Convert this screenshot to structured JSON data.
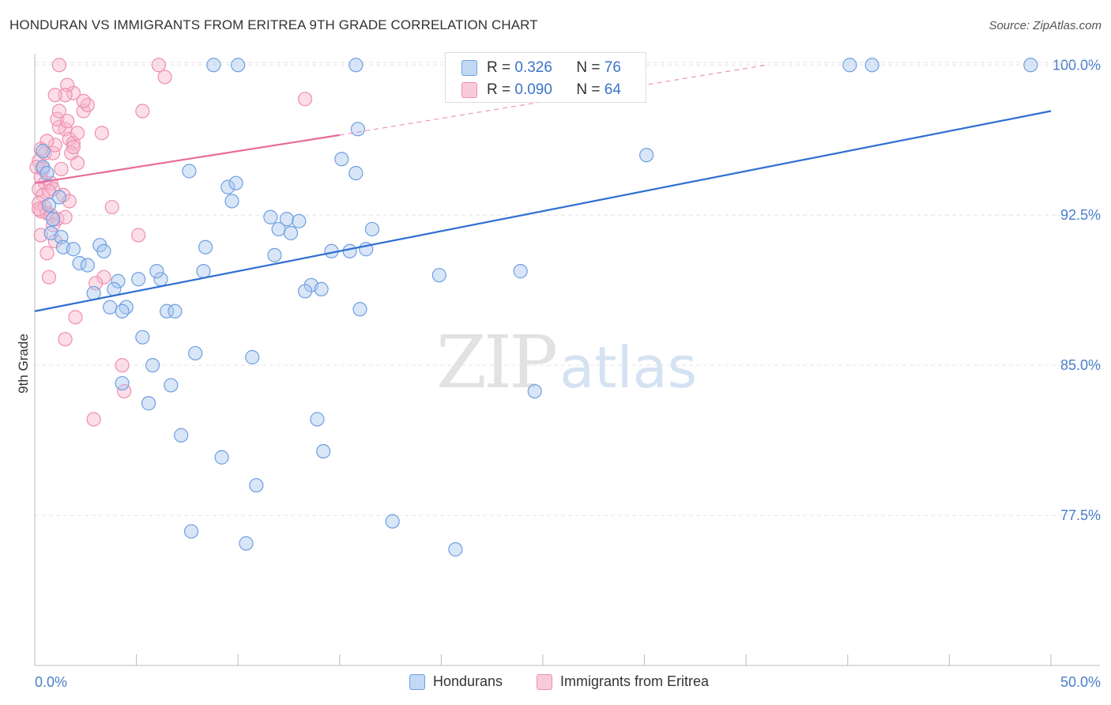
{
  "header": {
    "title": "HONDURAN VS IMMIGRANTS FROM ERITREA 9TH GRADE CORRELATION CHART",
    "source": "Source: ZipAtlas.com"
  },
  "watermark": {
    "zip": "ZIP",
    "atlas": "atlas"
  },
  "stats": {
    "rows": [
      {
        "r_label": "R =",
        "r_value": "0.326",
        "n_label": "N =",
        "n_value": "76"
      },
      {
        "r_label": "R =",
        "r_value": "0.090",
        "n_label": "N =",
        "n_value": "64"
      }
    ]
  },
  "legend": {
    "items": [
      {
        "label": "Hondurans"
      },
      {
        "label": "Immigrants from Eritrea"
      }
    ]
  },
  "colors": {
    "blue_fill": "#a9c7ef",
    "blue_stroke": "#6f9fe0",
    "blue_line": "#2f6fd0",
    "pink_fill": "#f7b6cb",
    "pink_stroke": "#ee8fae",
    "pink_line": "#e8699a",
    "axis_text": "#4a7ec9",
    "grid": "#e3e3e3"
  },
  "chart_data": {
    "type": "scatter",
    "title": "HONDURAN VS IMMIGRANTS FROM ERITREA 9TH GRADE CORRELATION CHART",
    "xlabel": "",
    "ylabel": "9th Grade",
    "xlim": [
      0,
      50
    ],
    "ylim": [
      70.0,
      100.8
    ],
    "x_tick_labels": [
      "0.0%",
      "50.0%"
    ],
    "y_ticks": [
      77.5,
      85.0,
      92.5,
      100.0
    ],
    "y_tick_labels": [
      "77.5%",
      "85.0%",
      "92.5%",
      "100.0%"
    ],
    "grid": true,
    "legend_position": "bottom-center",
    "series": [
      {
        "name": "Hondurans",
        "r": 0.326,
        "n": 76,
        "trend": {
          "x": [
            0,
            50
          ],
          "y": [
            87.7,
            97.7
          ]
        },
        "points": [
          [
            0.4,
            95.7
          ],
          [
            0.4,
            94.9
          ],
          [
            0.7,
            93.0
          ],
          [
            0.9,
            92.3
          ],
          [
            0.8,
            91.6
          ],
          [
            1.3,
            91.4
          ],
          [
            1.4,
            90.9
          ],
          [
            1.9,
            90.8
          ],
          [
            3.2,
            91.0
          ],
          [
            3.4,
            90.7
          ],
          [
            2.2,
            90.1
          ],
          [
            2.6,
            90.0
          ],
          [
            4.1,
            89.2
          ],
          [
            5.1,
            89.3
          ],
          [
            6.2,
            89.3
          ],
          [
            6.0,
            89.7
          ],
          [
            8.3,
            89.7
          ],
          [
            2.9,
            88.6
          ],
          [
            3.9,
            88.8
          ],
          [
            3.7,
            87.9
          ],
          [
            4.5,
            87.9
          ],
          [
            4.3,
            87.7
          ],
          [
            6.5,
            87.7
          ],
          [
            6.9,
            87.7
          ],
          [
            5.3,
            86.4
          ],
          [
            7.9,
            85.6
          ],
          [
            10.7,
            85.4
          ],
          [
            5.8,
            85.0
          ],
          [
            4.3,
            84.1
          ],
          [
            6.7,
            84.0
          ],
          [
            5.6,
            83.1
          ],
          [
            7.2,
            81.5
          ],
          [
            9.2,
            80.4
          ],
          [
            13.9,
            82.3
          ],
          [
            14.2,
            80.7
          ],
          [
            10.9,
            79.0
          ],
          [
            17.6,
            77.2
          ],
          [
            7.7,
            76.7
          ],
          [
            10.4,
            76.1
          ],
          [
            20.7,
            75.8
          ],
          [
            7.6,
            94.7
          ],
          [
            9.5,
            93.9
          ],
          [
            9.9,
            94.1
          ],
          [
            9.7,
            93.2
          ],
          [
            8.4,
            90.9
          ],
          [
            11.6,
            92.4
          ],
          [
            12.4,
            92.3
          ],
          [
            13.0,
            92.2
          ],
          [
            12.0,
            91.8
          ],
          [
            12.6,
            91.6
          ],
          [
            11.8,
            90.5
          ],
          [
            13.6,
            89.0
          ],
          [
            14.1,
            88.8
          ],
          [
            13.3,
            88.7
          ],
          [
            16.6,
            91.8
          ],
          [
            16.3,
            90.8
          ],
          [
            15.5,
            90.7
          ],
          [
            14.6,
            90.7
          ],
          [
            16.0,
            87.8
          ],
          [
            15.1,
            95.3
          ],
          [
            15.8,
            94.6
          ],
          [
            15.9,
            96.8
          ],
          [
            19.9,
            89.5
          ],
          [
            23.9,
            89.7
          ],
          [
            24.6,
            83.7
          ],
          [
            30.1,
            95.5
          ],
          [
            8.8,
            100.0
          ],
          [
            10.0,
            100.0
          ],
          [
            15.8,
            100.0
          ],
          [
            25.0,
            100.0
          ],
          [
            28.4,
            100.0
          ],
          [
            40.1,
            100.0
          ],
          [
            41.2,
            100.0
          ],
          [
            49.0,
            100.0
          ],
          [
            1.2,
            93.4
          ],
          [
            0.6,
            94.6
          ]
        ]
      },
      {
        "name": "Immigrants from Eritrea",
        "r": 0.09,
        "n": 64,
        "trend": {
          "x": [
            0,
            15
          ],
          "y": [
            94.1,
            96.5
          ]
        },
        "trend_extension": {
          "x": [
            15,
            36
          ],
          "y": [
            96.5,
            100.0
          ]
        },
        "points": [
          [
            0.2,
            95.2
          ],
          [
            0.1,
            94.9
          ],
          [
            0.3,
            94.4
          ],
          [
            0.5,
            94.1
          ],
          [
            0.2,
            93.8
          ],
          [
            0.4,
            93.5
          ],
          [
            0.2,
            93.1
          ],
          [
            0.5,
            92.9
          ],
          [
            0.3,
            92.7
          ],
          [
            0.6,
            92.6
          ],
          [
            0.8,
            92.5
          ],
          [
            1.1,
            92.3
          ],
          [
            0.9,
            92.0
          ],
          [
            0.3,
            91.5
          ],
          [
            1.0,
            91.2
          ],
          [
            0.6,
            90.6
          ],
          [
            0.7,
            89.4
          ],
          [
            0.5,
            95.6
          ],
          [
            0.9,
            95.6
          ],
          [
            1.0,
            96.0
          ],
          [
            0.6,
            96.2
          ],
          [
            1.3,
            94.8
          ],
          [
            1.5,
            96.8
          ],
          [
            1.2,
            96.9
          ],
          [
            1.1,
            97.3
          ],
          [
            1.6,
            97.2
          ],
          [
            1.7,
            96.3
          ],
          [
            1.9,
            96.1
          ],
          [
            2.1,
            96.6
          ],
          [
            1.2,
            97.7
          ],
          [
            2.4,
            97.7
          ],
          [
            2.6,
            98.0
          ],
          [
            2.4,
            98.2
          ],
          [
            1.9,
            98.6
          ],
          [
            1.6,
            99.0
          ],
          [
            1.5,
            98.5
          ],
          [
            3.3,
            96.6
          ],
          [
            0.8,
            94.1
          ],
          [
            1.4,
            93.5
          ],
          [
            1.5,
            92.4
          ],
          [
            0.9,
            93.8
          ],
          [
            1.8,
            95.6
          ],
          [
            1.9,
            95.9
          ],
          [
            1.0,
            98.5
          ],
          [
            3.8,
            92.9
          ],
          [
            5.1,
            91.5
          ],
          [
            3.4,
            89.4
          ],
          [
            3.0,
            89.1
          ],
          [
            2.0,
            87.4
          ],
          [
            1.5,
            86.3
          ],
          [
            4.3,
            85.0
          ],
          [
            4.4,
            83.7
          ],
          [
            2.9,
            82.3
          ],
          [
            6.4,
            99.4
          ],
          [
            1.2,
            100.0
          ],
          [
            6.1,
            100.0
          ],
          [
            13.3,
            98.3
          ],
          [
            5.3,
            97.7
          ],
          [
            2.1,
            95.1
          ],
          [
            0.4,
            94.8
          ],
          [
            0.2,
            92.8
          ],
          [
            0.7,
            93.7
          ],
          [
            0.3,
            95.8
          ],
          [
            1.7,
            93.2
          ]
        ]
      }
    ]
  }
}
